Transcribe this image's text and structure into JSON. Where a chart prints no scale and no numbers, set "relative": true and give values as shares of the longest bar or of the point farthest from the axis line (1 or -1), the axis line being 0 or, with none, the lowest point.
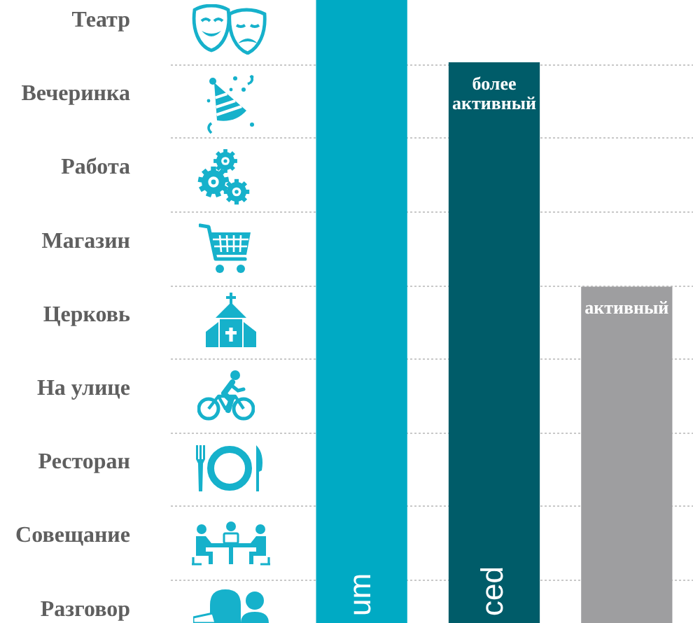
{
  "chart_data": {
    "type": "bar",
    "relative": true,
    "categories": [
      "um",
      "ced",
      null
    ],
    "series": [
      {
        "color": "#00aac4",
        "values": [
          1,
          null,
          null
        ]
      },
      {
        "name": "более активный",
        "color": "#005c69",
        "values": [
          null,
          0.9,
          null
        ]
      },
      {
        "name": "активный",
        "color": "#9e9ea0",
        "values": [
          null,
          null,
          0.54
        ]
      }
    ],
    "annotations": [
      "Театр",
      "Вечеринка",
      "Работа",
      "Магазин",
      "Церковь",
      "На улице",
      "Ресторан",
      "Совещание",
      "Разговор"
    ],
    "grid": true
  }
}
